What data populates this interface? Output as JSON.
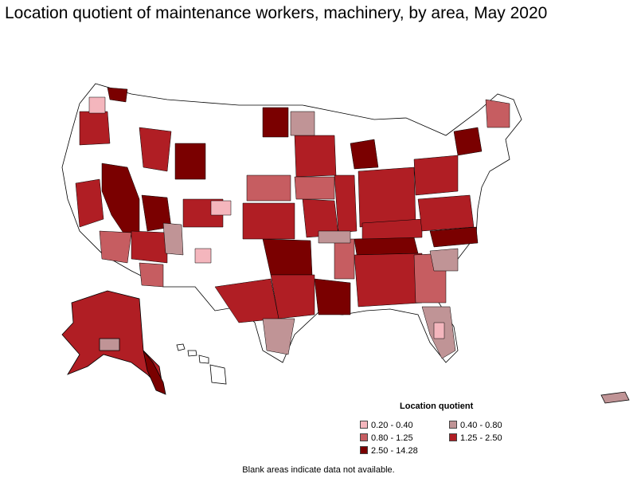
{
  "title": "Location quotient of maintenance workers, machinery, by area, May 2020",
  "legend": {
    "title": "Location quotient",
    "items": [
      {
        "label": "0.20 - 0.40",
        "color": "#f4b6bd"
      },
      {
        "label": "0.40 - 0.80",
        "color": "#c09496"
      },
      {
        "label": "0.80 - 1.25",
        "color": "#c65d61"
      },
      {
        "label": "1.25 - 2.50",
        "color": "#b01e24"
      },
      {
        "label": "2.50 - 14.28",
        "color": "#7a0000"
      }
    ]
  },
  "note": "Blank areas indicate data not available.",
  "colors": {
    "no_data": "#ffffff",
    "border": "#000000"
  }
}
